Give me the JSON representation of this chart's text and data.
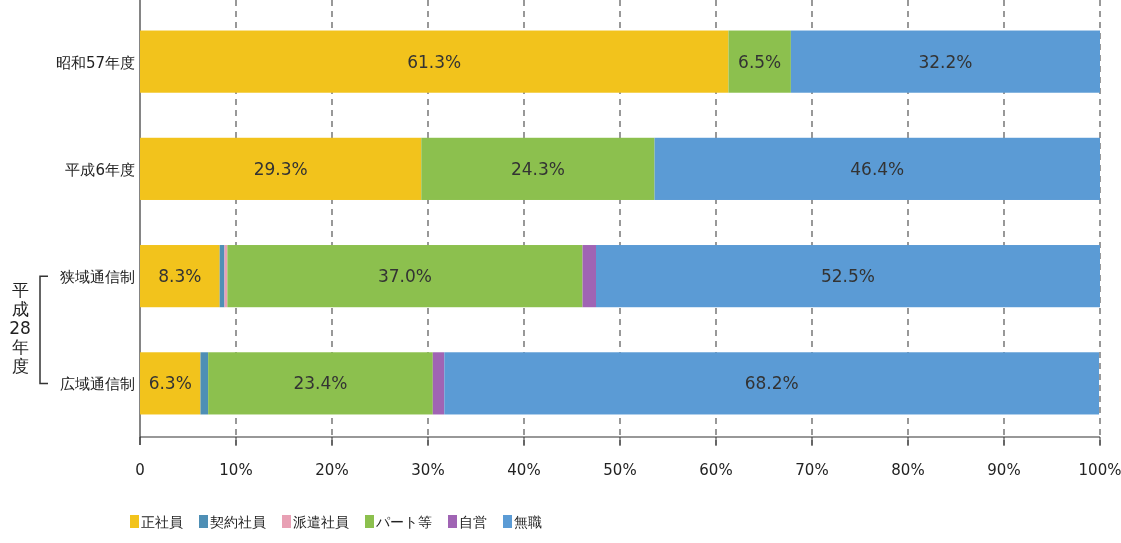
{
  "chart_data": {
    "type": "bar",
    "orientation": "horizontal",
    "stacked": true,
    "categories": [
      "昭和57年度",
      "平成6年度",
      "狭域通信制",
      "広域通信制"
    ],
    "series": [
      {
        "name": "正社員",
        "color": "#f2c31c",
        "values": [
          61.3,
          29.3,
          8.3,
          6.3
        ],
        "value_labels": [
          "61.3%",
          "29.3%",
          "8.3%",
          "6.3%"
        ]
      },
      {
        "name": "契約社員",
        "color": "#4e8fb5",
        "values": [
          null,
          null,
          0.5,
          0.8
        ]
      },
      {
        "name": "派遣社員",
        "color": "#e8a0b4",
        "values": [
          null,
          null,
          0.3,
          null
        ]
      },
      {
        "name": "パート等",
        "color": "#8cc04e",
        "values": [
          6.5,
          24.3,
          37.0,
          23.4
        ],
        "value_labels": [
          "6.5%",
          "24.3%",
          "37.0%",
          "23.4%"
        ]
      },
      {
        "name": "自営",
        "color": "#a064b4",
        "values": [
          null,
          null,
          1.4,
          1.2
        ]
      },
      {
        "name": "無職",
        "color": "#5b9bd5",
        "values": [
          32.2,
          46.4,
          52.5,
          68.2
        ],
        "value_labels": [
          "32.2%",
          "46.4%",
          "52.5%",
          "68.2%"
        ]
      }
    ],
    "xlim": [
      0,
      100
    ],
    "xticks": [
      0,
      {
        "value": 10,
        "label": "10%"
      },
      {
        "value": 20,
        "label": "20%"
      },
      {
        "value": 30,
        "label": "30%"
      },
      {
        "value": 40,
        "label": "40%"
      },
      {
        "value": 50,
        "label": "50%"
      },
      {
        "value": 60,
        "label": "60%"
      },
      {
        "value": 70,
        "label": "70%"
      },
      {
        "value": 80,
        "label": "80%"
      },
      {
        "value": 90,
        "label": "90%"
      },
      {
        "value": 100,
        "label": "100%"
      }
    ],
    "annotations": [
      "平成28年度"
    ],
    "grid": "x",
    "legend": "bottom left"
  }
}
